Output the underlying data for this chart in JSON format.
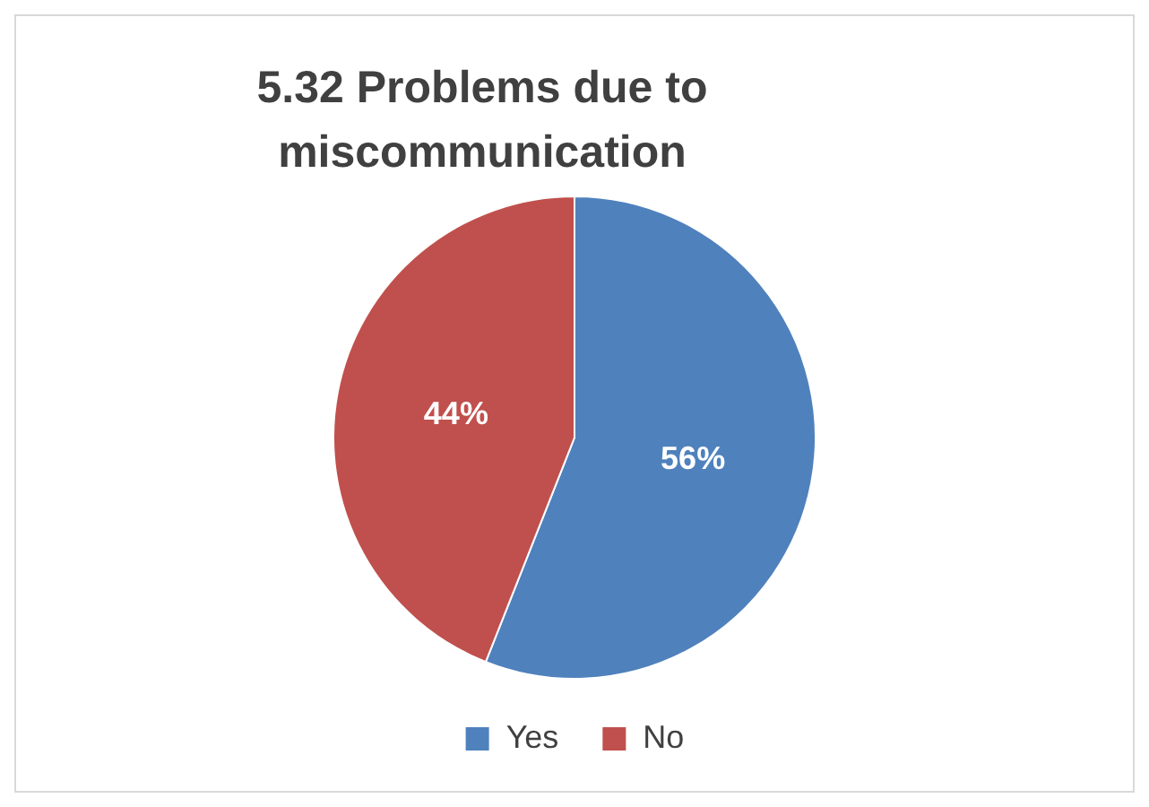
{
  "chart_data": {
    "type": "pie",
    "title": "5.32 Problems due to miscommunication",
    "categories": [
      "Yes",
      "No"
    ],
    "values": [
      56,
      44
    ],
    "colors": [
      "#4f81bd",
      "#c0504d"
    ],
    "value_labels": [
      "56%",
      "44%"
    ],
    "legend": "bottom"
  }
}
